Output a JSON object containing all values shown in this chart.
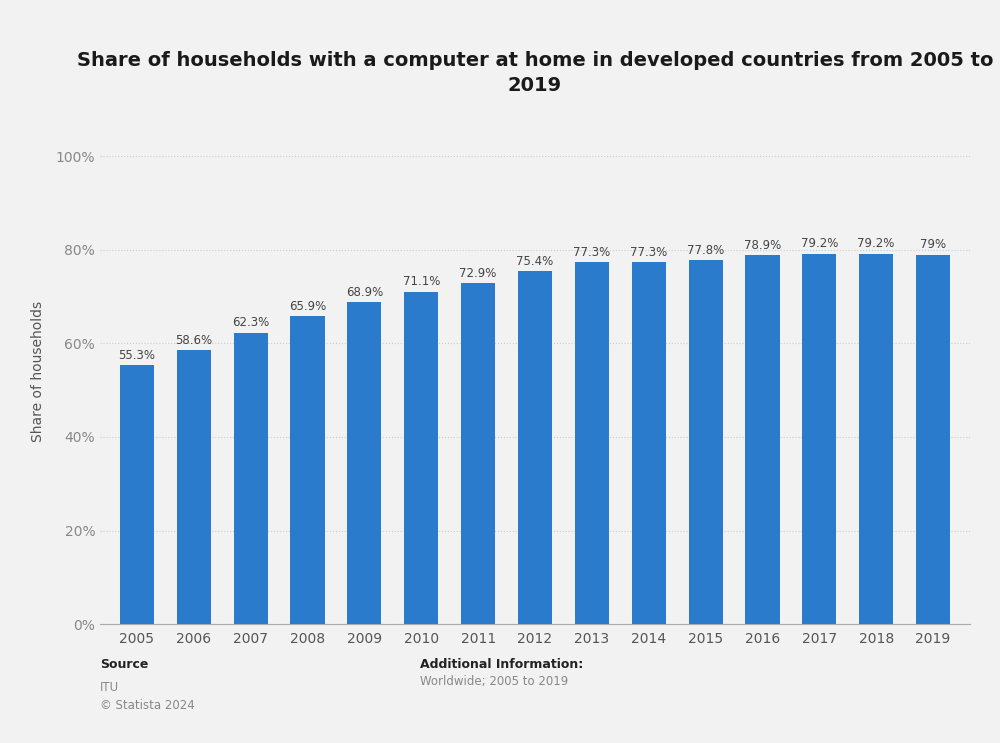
{
  "title": "Share of households with a computer at home in developed countries from 2005 to\n2019",
  "years": [
    2005,
    2006,
    2007,
    2008,
    2009,
    2010,
    2011,
    2012,
    2013,
    2014,
    2015,
    2016,
    2017,
    2018,
    2019
  ],
  "values": [
    55.3,
    58.6,
    62.3,
    65.9,
    68.9,
    71.1,
    72.9,
    75.4,
    77.3,
    77.3,
    77.8,
    78.9,
    79.2,
    79.2,
    79.0
  ],
  "labels": [
    "55.3%",
    "58.6%",
    "62.3%",
    "65.9%",
    "68.9%",
    "71.1%",
    "72.9%",
    "75.4%",
    "77.3%",
    "77.3%",
    "77.8%",
    "78.9%",
    "79.2%",
    "79.2%",
    "79%"
  ],
  "bar_color": "#2b7bcc",
  "ylabel": "Share of households",
  "yticks": [
    0,
    20,
    40,
    60,
    80,
    100
  ],
  "ytick_labels": [
    "0%",
    "20%",
    "40%",
    "60%",
    "80%",
    "100%"
  ],
  "ylim": [
    0,
    108
  ],
  "background_color": "#f2f2f2",
  "plot_bg_color": "#f2f2f2",
  "title_fontsize": 14,
  "source_label": "Source",
  "source_sub": "ITU\n© Statista 2024",
  "additional_label": "Additional Information:",
  "additional_sub": "Worldwide; 2005 to 2019"
}
